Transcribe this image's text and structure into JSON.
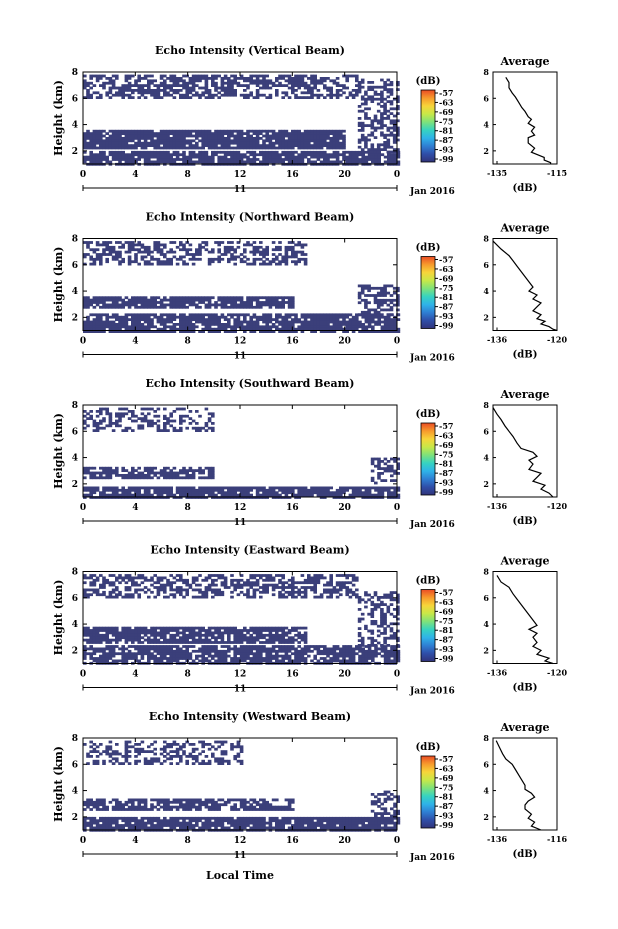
{
  "figure": {
    "x_axis_title": "Local Time",
    "date_label": "Jan 2016",
    "day_label": "11",
    "y_axis_title": "Height (km)",
    "colorbar_unit": "(dB)",
    "profile_title": "Average",
    "profile_xlabel": "(dB)"
  },
  "colors": {
    "echo_fill": "#3b3f7a",
    "colorbar_stops": [
      "#31337a",
      "#2f4ea8",
      "#2f7fd3",
      "#2fb3e8",
      "#37d3c0",
      "#7fe27a",
      "#c8e848",
      "#f7d53a",
      "#f79a2c",
      "#ea4c25"
    ]
  },
  "chart_data": [
    {
      "type": "heatmap",
      "title": "Echo Intensity (Vertical Beam)",
      "xlabel": "Local Time",
      "ylabel": "Height (km)",
      "xlim": [
        0,
        24
      ],
      "ylim": [
        1,
        8
      ],
      "x_ticks": [
        "0",
        "4",
        "8",
        "12",
        "16",
        "20",
        "0"
      ],
      "y_ticks": [
        "2",
        "4",
        "6",
        "8"
      ],
      "colorbar_ticks": [
        "-57",
        "-63",
        "-69",
        "-75",
        "-81",
        "-87",
        "-93",
        "-99"
      ],
      "echo_layers": [
        {
          "x_start": 0,
          "x_end": 21,
          "y_low": 6.1,
          "y_high": 7.8,
          "density": 0.55
        },
        {
          "x_start": 0,
          "x_end": 20,
          "y_low": 2.3,
          "y_high": 3.6,
          "density": 0.9
        },
        {
          "x_start": 0,
          "x_end": 24,
          "y_low": 1.0,
          "y_high": 2.0,
          "density": 0.82
        },
        {
          "x_start": 21,
          "x_end": 24,
          "y_low": 2.0,
          "y_high": 7.5,
          "density": 0.5
        }
      ],
      "profile": {
        "xlim": [
          -135,
          -115
        ],
        "ylim": [
          1,
          8
        ],
        "x_ticks": [
          "-135",
          "-115"
        ],
        "y_ticks": [
          "2",
          "4",
          "6",
          "8"
        ],
        "x": [
          -131,
          -130,
          -130,
          -129,
          -128,
          -127,
          -126,
          -125,
          -124,
          -123,
          -124,
          -122,
          -123,
          -122,
          -124,
          -124,
          -122,
          -123,
          -121,
          -119,
          -119,
          -117,
          -117
        ],
        "y": [
          7.6,
          7.2,
          6.8,
          6.4,
          6.1,
          5.7,
          5.3,
          5.0,
          4.6,
          4.4,
          4.1,
          3.8,
          3.5,
          3.2,
          3.0,
          2.6,
          2.2,
          1.9,
          1.7,
          1.5,
          1.3,
          1.1,
          1.0
        ]
      }
    },
    {
      "type": "heatmap",
      "title": "Echo Intensity (Northward Beam)",
      "xlabel": "Local Time",
      "ylabel": "Height (km)",
      "xlim": [
        0,
        24
      ],
      "ylim": [
        1,
        8
      ],
      "x_ticks": [
        "0",
        "4",
        "8",
        "12",
        "16",
        "20",
        "0"
      ],
      "y_ticks": [
        "2",
        "4",
        "6",
        "8"
      ],
      "colorbar_ticks": [
        "-57",
        "-63",
        "-69",
        "-75",
        "-81",
        "-87",
        "-93",
        "-99"
      ],
      "echo_layers": [
        {
          "x_start": 0,
          "x_end": 17,
          "y_low": 6.0,
          "y_high": 7.8,
          "density": 0.5
        },
        {
          "x_start": 0,
          "x_end": 16,
          "y_low": 2.8,
          "y_high": 3.6,
          "density": 0.85
        },
        {
          "x_start": 0,
          "x_end": 24,
          "y_low": 1.0,
          "y_high": 2.3,
          "density": 0.8
        },
        {
          "x_start": 21,
          "x_end": 24,
          "y_low": 2.3,
          "y_high": 4.5,
          "density": 0.5
        }
      ],
      "profile": {
        "xlim": [
          -136,
          -120
        ],
        "ylim": [
          1,
          8
        ],
        "x_ticks": [
          "-136",
          "-120"
        ],
        "y_ticks": [
          "2",
          "4",
          "6",
          "8"
        ],
        "x": [
          -136,
          -134,
          -132,
          -131,
          -130,
          -129,
          -128,
          -127,
          -126,
          -127,
          -125,
          -126,
          -124,
          -125,
          -126,
          -124,
          -125,
          -123,
          -124,
          -122,
          -121,
          -120
        ],
        "y": [
          7.8,
          7.2,
          6.7,
          6.3,
          5.9,
          5.5,
          5.1,
          4.7,
          4.3,
          4.0,
          3.7,
          3.4,
          3.1,
          2.8,
          2.5,
          2.2,
          1.9,
          1.7,
          1.5,
          1.3,
          1.1,
          1.0
        ]
      }
    },
    {
      "type": "heatmap",
      "title": "Echo Intensity (Southward Beam)",
      "xlabel": "Local Time",
      "ylabel": "Height (km)",
      "xlim": [
        0,
        24
      ],
      "ylim": [
        1,
        8
      ],
      "x_ticks": [
        "0",
        "4",
        "8",
        "12",
        "16",
        "20",
        "0"
      ],
      "y_ticks": [
        "2",
        "4",
        "6",
        "8"
      ],
      "colorbar_ticks": [
        "-57",
        "-63",
        "-69",
        "-75",
        "-81",
        "-87",
        "-93",
        "-99"
      ],
      "echo_layers": [
        {
          "x_start": 0,
          "x_end": 10,
          "y_low": 6.0,
          "y_high": 7.8,
          "density": 0.35
        },
        {
          "x_start": 0,
          "x_end": 10,
          "y_low": 2.5,
          "y_high": 3.3,
          "density": 0.7
        },
        {
          "x_start": 0,
          "x_end": 24,
          "y_low": 1.0,
          "y_high": 1.8,
          "density": 0.85
        },
        {
          "x_start": 22,
          "x_end": 24,
          "y_low": 2.0,
          "y_high": 4.0,
          "density": 0.4
        }
      ],
      "profile": {
        "xlim": [
          -136,
          -120
        ],
        "ylim": [
          1,
          8
        ],
        "x_ticks": [
          "-136",
          "-120"
        ],
        "y_ticks": [
          "2",
          "4",
          "6",
          "8"
        ],
        "x": [
          -136,
          -135,
          -134,
          -133,
          -132,
          -131,
          -130,
          -129,
          -126,
          -125,
          -127,
          -126,
          -127,
          -124,
          -125,
          -126,
          -123,
          -124,
          -122,
          -121
        ],
        "y": [
          7.8,
          7.3,
          6.9,
          6.4,
          6.0,
          5.6,
          5.1,
          4.7,
          4.4,
          4.1,
          3.8,
          3.5,
          3.1,
          2.8,
          2.5,
          2.2,
          1.9,
          1.6,
          1.3,
          1.0
        ]
      }
    },
    {
      "type": "heatmap",
      "title": "Echo Intensity (Eastward Beam)",
      "xlabel": "Local Time",
      "ylabel": "Height (km)",
      "xlim": [
        0,
        24
      ],
      "ylim": [
        1,
        8
      ],
      "x_ticks": [
        "0",
        "4",
        "8",
        "12",
        "16",
        "20",
        "0"
      ],
      "y_ticks": [
        "2",
        "4",
        "6",
        "8"
      ],
      "colorbar_ticks": [
        "-57",
        "-63",
        "-69",
        "-75",
        "-81",
        "-87",
        "-93",
        "-99"
      ],
      "echo_layers": [
        {
          "x_start": 0,
          "x_end": 21,
          "y_low": 6.0,
          "y_high": 7.8,
          "density": 0.55
        },
        {
          "x_start": 0,
          "x_end": 17,
          "y_low": 2.6,
          "y_high": 3.8,
          "density": 0.85
        },
        {
          "x_start": 0,
          "x_end": 24,
          "y_low": 1.0,
          "y_high": 2.4,
          "density": 0.78
        },
        {
          "x_start": 21,
          "x_end": 24,
          "y_low": 2.4,
          "y_high": 6.5,
          "density": 0.45
        }
      ],
      "profile": {
        "xlim": [
          -136,
          -120
        ],
        "ylim": [
          1,
          8
        ],
        "x_ticks": [
          "-136",
          "-120"
        ],
        "y_ticks": [
          "2",
          "4",
          "6",
          "8"
        ],
        "x": [
          -135,
          -134,
          -132,
          -131,
          -130,
          -129,
          -128,
          -127,
          -126,
          -125,
          -127,
          -125,
          -126,
          -125,
          -126,
          -124,
          -125,
          -122,
          -123,
          -121
        ],
        "y": [
          7.7,
          7.2,
          6.8,
          6.3,
          5.9,
          5.5,
          5.1,
          4.7,
          4.3,
          3.9,
          3.6,
          3.3,
          3.0,
          2.6,
          2.3,
          2.0,
          1.7,
          1.4,
          1.2,
          1.0
        ]
      }
    },
    {
      "type": "heatmap",
      "title": "Echo Intensity (Westward Beam)",
      "xlabel": "Local Time",
      "ylabel": "Height (km)",
      "xlim": [
        0,
        24
      ],
      "ylim": [
        1,
        8
      ],
      "x_ticks": [
        "0",
        "4",
        "8",
        "12",
        "16",
        "20",
        "0"
      ],
      "y_ticks": [
        "2",
        "4",
        "6",
        "8"
      ],
      "colorbar_ticks": [
        "-57",
        "-63",
        "-69",
        "-75",
        "-81",
        "-87",
        "-93",
        "-99"
      ],
      "echo_layers": [
        {
          "x_start": 0,
          "x_end": 12,
          "y_low": 6.0,
          "y_high": 7.8,
          "density": 0.4
        },
        {
          "x_start": 0,
          "x_end": 16,
          "y_low": 2.5,
          "y_high": 3.4,
          "density": 0.7
        },
        {
          "x_start": 0,
          "x_end": 24,
          "y_low": 1.0,
          "y_high": 2.0,
          "density": 0.85
        },
        {
          "x_start": 22,
          "x_end": 24,
          "y_low": 2.0,
          "y_high": 4.0,
          "density": 0.45
        }
      ],
      "profile": {
        "xlim": [
          -136,
          -116
        ],
        "ylim": [
          1,
          8
        ],
        "x_ticks": [
          "-136",
          "-116"
        ],
        "y_ticks": [
          "2",
          "4",
          "6",
          "8"
        ],
        "x": [
          -135,
          -134,
          -133,
          -132,
          -130,
          -129,
          -128,
          -127,
          -126,
          -126,
          -124,
          -123,
          -125,
          -126,
          -126,
          -124,
          -125,
          -123,
          -124,
          -121
        ],
        "y": [
          7.8,
          7.3,
          6.8,
          6.4,
          6.0,
          5.6,
          5.2,
          4.8,
          4.4,
          4.1,
          3.8,
          3.5,
          3.2,
          2.9,
          2.6,
          2.2,
          1.9,
          1.6,
          1.3,
          1.0
        ]
      }
    }
  ]
}
